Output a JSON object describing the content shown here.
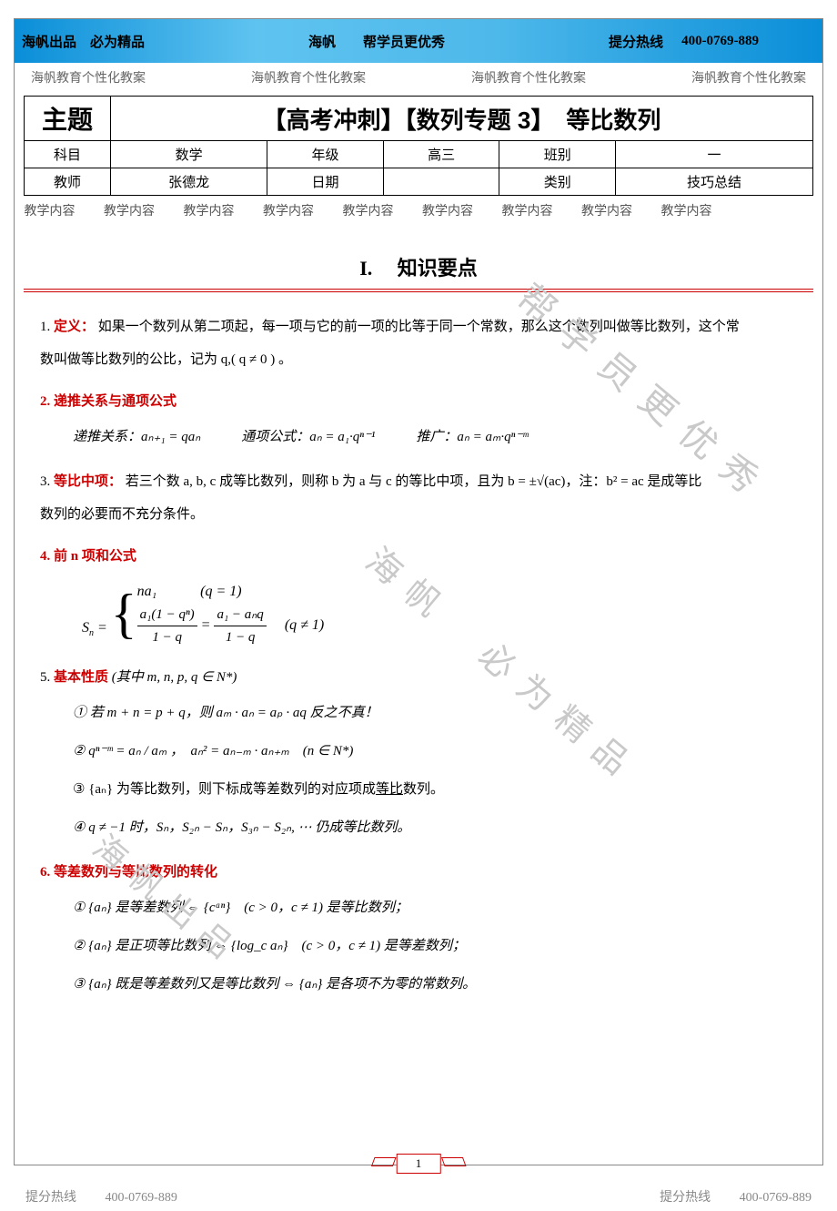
{
  "colors": {
    "accent_red": "#cc0000",
    "banner_gradient_start": "#0a8ed8",
    "banner_gradient_mid": "#5fc3f0",
    "watermark_gray": "#c9c9c9",
    "footer_gray": "#888888"
  },
  "banner": {
    "brand": "海帆出品　必为精品",
    "name": "海帆",
    "slogan": "帮学员更优秀",
    "hotline_label": "提分热线",
    "hotline": "400-0769-889"
  },
  "watermark_line": "海帆教育个性化教案",
  "meta": {
    "topic_label": "主题",
    "topic_value": "【高考冲刺】【数列专题 3】　等比数列",
    "subject_label": "科目",
    "subject_value": "数学",
    "grade_label": "年级",
    "grade_value": "高三",
    "class_label": "班别",
    "class_value": "一",
    "teacher_label": "教师",
    "teacher_value": "张德龙",
    "date_label": "日期",
    "date_value": "",
    "type_label": "类别",
    "type_value": "技巧总结",
    "content_watermark": "教学内容"
  },
  "section1": {
    "number": "I.",
    "title": "知识要点"
  },
  "body": {
    "p1_num": "1.",
    "p1_label": "定义：",
    "p1_text_a": "如果一个数列从第二项起，每一项与它的前一项的比等于同一个常数，那么这个数列叫做等比数列，这个常",
    "p1_text_b": "数叫做等比数列的公比，记为 q,( q ≠ 0 ) 。",
    "p2_num": "2.",
    "p2_label": "递推关系与通项公式",
    "p2_line": "递推关系：aₙ₊₁ = qaₙ　　　通项公式：aₙ = a₁·qⁿ⁻¹　　　推广：aₙ = aₘ·qⁿ⁻ᵐ",
    "p3_num": "3.",
    "p3_label": "等比中项：",
    "p3_text_a": "若三个数 a, b, c 成等比数列，则称 b 为 a 与 c 的等比中项，且为 b = ±√(ac)，注：b² = ac 是成等比",
    "p3_text_b": "数列的必要而不充分条件。",
    "p4_num": "4.",
    "p4_label": "前 n 项和公式",
    "p4_formula_case1": "na₁　　　(q = 1)",
    "p4_formula_case2_a": "a₁(1 − qⁿ)",
    "p4_formula_case2_b": "1 − q",
    "p4_formula_case2_c": "a₁ − aₙq",
    "p4_formula_case2_d": "1 − q",
    "p4_formula_cond2": "(q ≠ 1)",
    "p5_num": "5.",
    "p5_label": "基本性质",
    "p5_cond": "(其中 m, n, p, q ∈ N*)",
    "p5_1": "① 若 m + n = p + q，则 aₘ · aₙ = aₚ · aq 反之不真！",
    "p5_2": "② qⁿ⁻ᵐ = aₙ / aₘ ，　aₙ² = aₙ₋ₘ · aₙ₊ₘ　(n ∈ N*)",
    "p5_3": "③ {aₙ} 为等比数列，则下标成等差数列的对应项成",
    "p5_3_u": "等比",
    "p5_3_end": "数列。",
    "p5_4": "④ q ≠ −1 时，Sₙ，S₂ₙ − Sₙ，S₃ₙ − S₂ₙ, ⋯ 仍成等比数列。",
    "p6_num": "6.",
    "p6_label": "等差数列与等比数列的转化",
    "p6_1": "① {aₙ} 是等差数列 ⇔ {cᵃⁿ}　(c > 0，c ≠ 1) 是等比数列；",
    "p6_2": "② {aₙ} 是正项等比数列 ⇔ {log_c aₙ}　(c > 0，c ≠ 1) 是等差数列；",
    "p6_3": "③ {aₙ} 既是等差数列又是等比数列 ⇔ {aₙ} 是各项不为零的常数列。"
  },
  "diag_watermarks": {
    "wm1": "帮学员更优秀",
    "wm2": "海帆　必为精品",
    "wm3": "海帆出品"
  },
  "page_number": "1",
  "footer": {
    "left_label": "提分热线",
    "left_phone": "400-0769-889",
    "right_label": "提分热线",
    "right_phone": "400-0769-889"
  }
}
